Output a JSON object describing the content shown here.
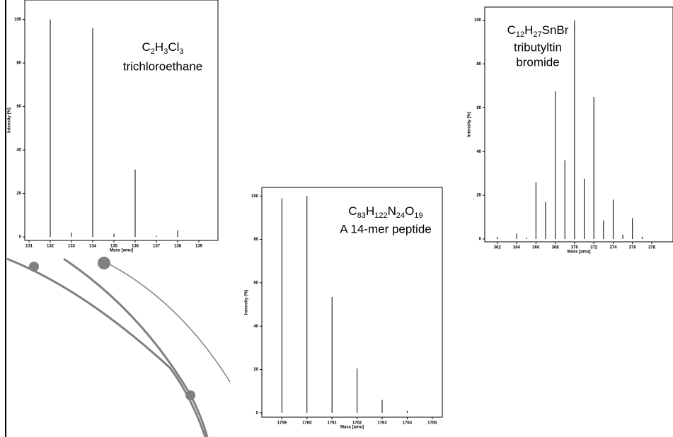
{
  "chart_data": [
    {
      "type": "bar",
      "formula": [
        [
          "C",
          "2"
        ],
        [
          "H",
          "3"
        ],
        [
          "Cl",
          "3"
        ]
      ],
      "name": [
        "trichloroethane"
      ],
      "x_label": "Mass [amu]",
      "y_label": "Intensity (%)",
      "x": [
        132,
        133,
        134,
        135,
        136,
        137,
        138
      ],
      "values": [
        100,
        2,
        96,
        1.5,
        31,
        0.5,
        3
      ],
      "color": "#000000",
      "xlim": [
        130.8,
        139.9
      ],
      "xticks": [
        131,
        132,
        133,
        134,
        135,
        136,
        137,
        138,
        139
      ],
      "ylim": [
        -1.6,
        109
      ],
      "yticks": [
        0,
        20,
        40,
        60,
        80,
        100
      ]
    },
    {
      "type": "bar",
      "formula": [
        [
          "C",
          "12"
        ],
        [
          "H",
          "27"
        ],
        [
          "SnBr"
        ]
      ],
      "name": [
        "tributyltin",
        "bromide"
      ],
      "x_label": "Mass [amu]",
      "y_label": "Intensity (%)",
      "x": [
        362,
        364,
        365,
        366,
        367,
        368,
        369,
        370,
        371,
        372,
        373,
        374,
        375,
        376,
        377
      ],
      "values": [
        1,
        2.5,
        0.5,
        26,
        17,
        67.5,
        36,
        100,
        27.5,
        65,
        8.5,
        18,
        2,
        9.5,
        1
      ],
      "color": "#000000",
      "xlim": [
        360.7,
        380.2
      ],
      "xticks": [
        362,
        364,
        366,
        368,
        370,
        372,
        374,
        376,
        378
      ],
      "ylim": [
        -1.3,
        106
      ],
      "yticks": [
        0,
        20,
        40,
        60,
        80,
        100
      ]
    },
    {
      "type": "bar",
      "formula": [
        [
          "C",
          "83"
        ],
        [
          "H",
          "122"
        ],
        [
          "N",
          "24"
        ],
        [
          "O",
          "19"
        ]
      ],
      "name": [
        "A 14-mer peptide"
      ],
      "x_label": "Mass [amu]",
      "y_label": "Intensity (%)",
      "x": [
        1759,
        1760,
        1761,
        1762,
        1763,
        1764
      ],
      "values": [
        99,
        100,
        53.5,
        20.5,
        6,
        1
      ],
      "color": "#000000",
      "xlim": [
        1758.2,
        1765.4
      ],
      "xticks": [
        1759,
        1760,
        1761,
        1762,
        1763,
        1764,
        1765
      ],
      "ylim": [
        -2,
        104
      ],
      "yticks": [
        0,
        20,
        40,
        60,
        80,
        100
      ]
    }
  ]
}
